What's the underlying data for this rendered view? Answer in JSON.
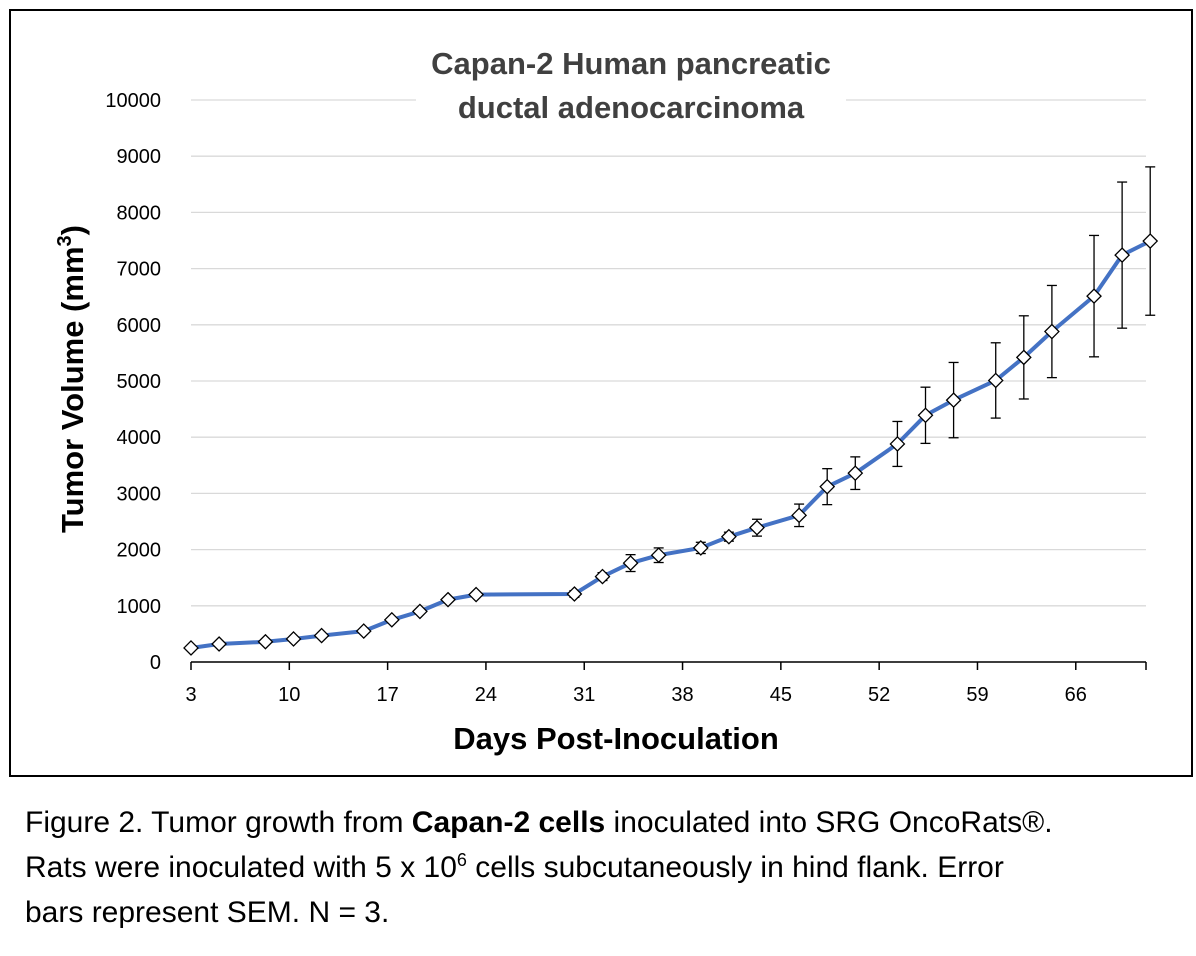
{
  "chart_data": {
    "type": "line",
    "title_lines": [
      "Capan-2 Human pancreatic",
      "ductal adenocarcinoma"
    ],
    "xlabel": "Days Post-Inoculation",
    "ylabel_text": "Tumor Volume  (mm",
    "ylabel_superscript": "3",
    "ylabel_close": ")",
    "xlim": [
      3,
      71
    ],
    "ylim": [
      0,
      10000
    ],
    "yticks": [
      "0",
      "1000",
      "2000",
      "3000",
      "4000",
      "5000",
      "6000",
      "7000",
      "8000",
      "9000",
      "10000"
    ],
    "xticks": [
      "3",
      "10",
      "17",
      "24",
      "31",
      "38",
      "45",
      "52",
      "59",
      "66"
    ],
    "grid": true,
    "line_color": "#4472C4",
    "marker": "diamond",
    "series": [
      {
        "points": [
          {
            "x": 3,
            "y": 250,
            "err": 0
          },
          {
            "x": 5,
            "y": 320,
            "err": 0
          },
          {
            "x": 8.3,
            "y": 360,
            "err": 0
          },
          {
            "x": 10.3,
            "y": 410,
            "err": 0
          },
          {
            "x": 12.3,
            "y": 470,
            "err": 0
          },
          {
            "x": 15.3,
            "y": 550,
            "err": 0
          },
          {
            "x": 17.3,
            "y": 750,
            "err": 0
          },
          {
            "x": 19.3,
            "y": 900,
            "err": 0
          },
          {
            "x": 21.3,
            "y": 1110,
            "err": 0
          },
          {
            "x": 23.3,
            "y": 1200,
            "err": 0
          },
          {
            "x": 30.3,
            "y": 1210,
            "err": 60
          },
          {
            "x": 32.3,
            "y": 1520,
            "err": 70
          },
          {
            "x": 34.3,
            "y": 1760,
            "err": 150
          },
          {
            "x": 36.3,
            "y": 1900,
            "err": 130
          },
          {
            "x": 39.3,
            "y": 2030,
            "err": 100
          },
          {
            "x": 41.3,
            "y": 2230,
            "err": 80
          },
          {
            "x": 43.3,
            "y": 2390,
            "err": 150
          },
          {
            "x": 46.3,
            "y": 2610,
            "err": 200
          },
          {
            "x": 48.3,
            "y": 3120,
            "err": 320
          },
          {
            "x": 50.3,
            "y": 3360,
            "err": 290
          },
          {
            "x": 53.3,
            "y": 3880,
            "err": 400
          },
          {
            "x": 55.3,
            "y": 4390,
            "err": 500
          },
          {
            "x": 57.3,
            "y": 4660,
            "err": 670
          },
          {
            "x": 60.3,
            "y": 5010,
            "err": 670
          },
          {
            "x": 62.3,
            "y": 5420,
            "err": 740
          },
          {
            "x": 64.3,
            "y": 5880,
            "err": 820
          },
          {
            "x": 67.3,
            "y": 6510,
            "err": 1080
          },
          {
            "x": 69.3,
            "y": 7240,
            "err": 1300
          },
          {
            "x": 71.3,
            "y": 7490,
            "err": 1320
          }
        ]
      }
    ]
  },
  "caption": {
    "prefix": "Figure 2. Tumor growth from ",
    "bold": "Capan-2 cells",
    "line1_suffix": " inoculated into SRG OncoRats®.",
    "line2_prefix": "Rats were inoculated with 5 x 10",
    "line2_sup": "6",
    "line2_suffix": " cells subcutaneously in hind flank. Error",
    "line3": "bars represent SEM. N = 3."
  }
}
